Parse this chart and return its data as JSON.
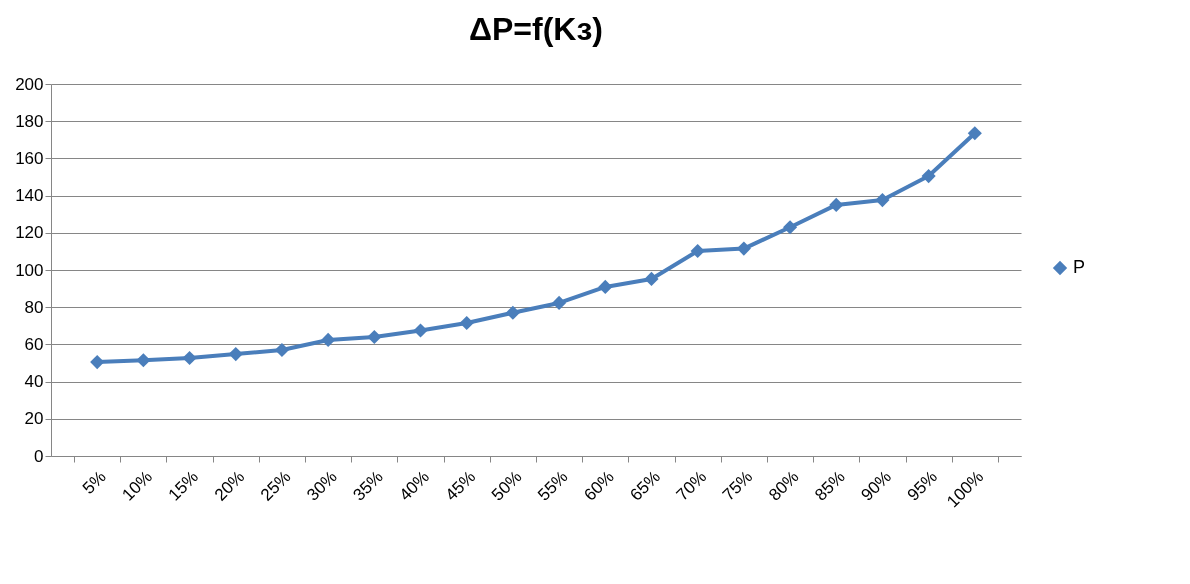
{
  "chart_data": {
    "type": "line",
    "title": "ΔP=f(Kз)",
    "categories": [
      "5%",
      "10%",
      "15%",
      "20%",
      "25%",
      "30%",
      "35%",
      "40%",
      "45%",
      "50%",
      "55%",
      "60%",
      "65%",
      "70%",
      "75%",
      "80%",
      "85%",
      "90%",
      "95%",
      "100%"
    ],
    "series": [
      {
        "name": "P",
        "color": "#4a7ebb",
        "values": [
          50.5,
          51.5,
          52.7,
          54.8,
          57,
          62.4,
          64,
          67.5,
          71.5,
          77,
          82.3,
          90.9,
          95.2,
          110.2,
          111.5,
          123,
          135,
          137.6,
          150.5,
          173.5
        ]
      }
    ],
    "ylim": [
      0,
      200
    ],
    "yticks": [
      0,
      20,
      40,
      60,
      80,
      100,
      120,
      140,
      160,
      180,
      200
    ],
    "grid": "y",
    "legend": "right",
    "marker": "diamond",
    "line_style": "solid"
  }
}
